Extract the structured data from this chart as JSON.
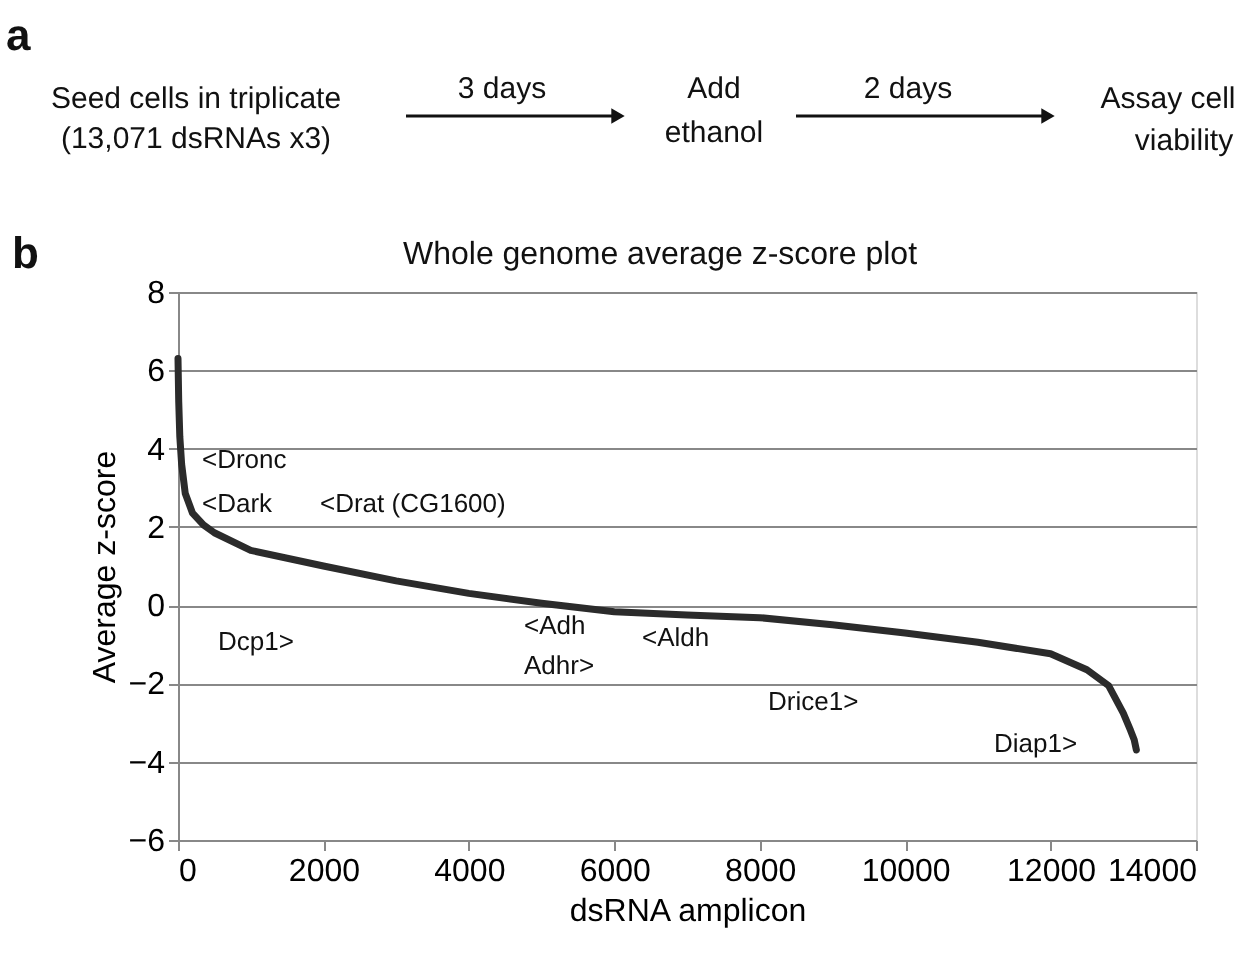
{
  "chart_data": {
    "type": "line",
    "title": "Whole genome average z-score plot",
    "xlabel": "dsRNA amplicon",
    "ylabel": "Average z-score",
    "xlim": [
      0,
      14000
    ],
    "xticks": [
      0,
      2000,
      4000,
      6000,
      8000,
      10000,
      12000,
      14000
    ],
    "ylim": [
      -6,
      8
    ],
    "yticks": [
      -6,
      -4,
      -2,
      0,
      2,
      4,
      6,
      8
    ],
    "grid": "y",
    "line_style": "solid",
    "marker": "none",
    "series": [
      {
        "color": "#2b2b2b",
        "x": [
          0,
          10,
          25,
          50,
          100,
          200,
          350,
          500,
          1000,
          2000,
          3000,
          4000,
          5000,
          6000,
          7000,
          8000,
          9000,
          10000,
          11000,
          12000,
          12500,
          12800,
          13000,
          13100,
          13150,
          13180
        ],
        "values": [
          6.3,
          5.2,
          4.3,
          3.6,
          2.85,
          2.35,
          2.05,
          1.85,
          1.4,
          1.0,
          0.62,
          0.3,
          0.05,
          -0.17,
          -0.25,
          -0.32,
          -0.5,
          -0.71,
          -0.95,
          -1.24,
          -1.65,
          -2.06,
          -2.76,
          -3.2,
          -3.44,
          -3.7
        ]
      }
    ],
    "annotations": [
      "a",
      "Seed cells in triplicate",
      "(13,071 dsRNAs x3)",
      "3 days",
      "Add",
      "ethanol",
      "2 days",
      "Assay cell",
      "viability",
      "b",
      "<Dronc",
      "<Dark",
      "<Drat (CG1600)",
      "Dcp1>",
      "<Adh",
      "Adhr>",
      "<Aldh",
      "Drice1>",
      "Diap1>"
    ]
  }
}
